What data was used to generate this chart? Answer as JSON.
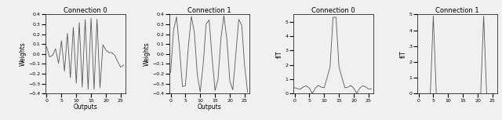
{
  "fig_width": 6.4,
  "fig_height": 1.53,
  "dpi": 100,
  "background_color": "#f0f0f0",
  "titles": [
    "Connection 0",
    "Connection 1",
    "Connection 0",
    "Connection 1"
  ],
  "xlabels": [
    "Outputs",
    "Outputs",
    "",
    ""
  ],
  "ylabels": [
    "Weights",
    "Weights",
    "fIT",
    "fIT"
  ],
  "ylims_weights": [
    -0.4,
    0.4
  ],
  "ylims_fft0": [
    0,
    5.5
  ],
  "ylims_fft1": [
    0,
    5
  ],
  "n_points": 27,
  "line_color": "#555555",
  "line_width": 0.6,
  "yticks_weights": [
    -0.4,
    -0.3,
    -0.2,
    -0.1,
    0.0,
    0.1,
    0.2,
    0.3,
    0.4
  ],
  "yticks_fft0": [
    0,
    1,
    2,
    3,
    4,
    5
  ],
  "yticks_fft1": [
    0,
    1,
    2,
    3,
    4,
    5
  ],
  "xticks": [
    0,
    5,
    10,
    15,
    20,
    25
  ]
}
